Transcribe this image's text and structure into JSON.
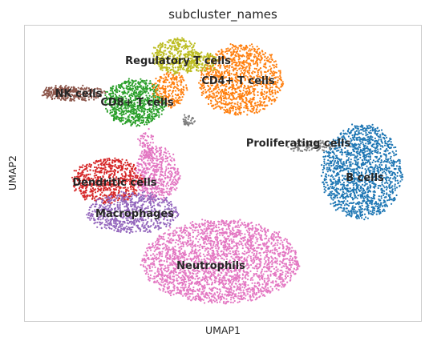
{
  "chart_data": {
    "type": "scatter",
    "title": "subcluster_names",
    "xlabel": "UMAP1",
    "ylabel": "UMAP2",
    "grid": false,
    "legend": "on data",
    "ticks": "none",
    "clusters": [
      {
        "name": "Regulatory T cells",
        "color": "#bcbd22"
      },
      {
        "name": "CD4+ T cells",
        "color": "#ff7f0e"
      },
      {
        "name": "NK cells",
        "color": "#8c564b"
      },
      {
        "name": "CD8+ T cells",
        "color": "#2ca02c"
      },
      {
        "name": "Proliferating cells",
        "color": "#7f7f7f"
      },
      {
        "name": "B cells",
        "color": "#1f77b4"
      },
      {
        "name": "Dendritic cells",
        "color": "#d62728"
      },
      {
        "name": "Macrophages",
        "color": "#9467bd"
      },
      {
        "name": "Neutrophils",
        "color": "#e377c2"
      }
    ]
  }
}
